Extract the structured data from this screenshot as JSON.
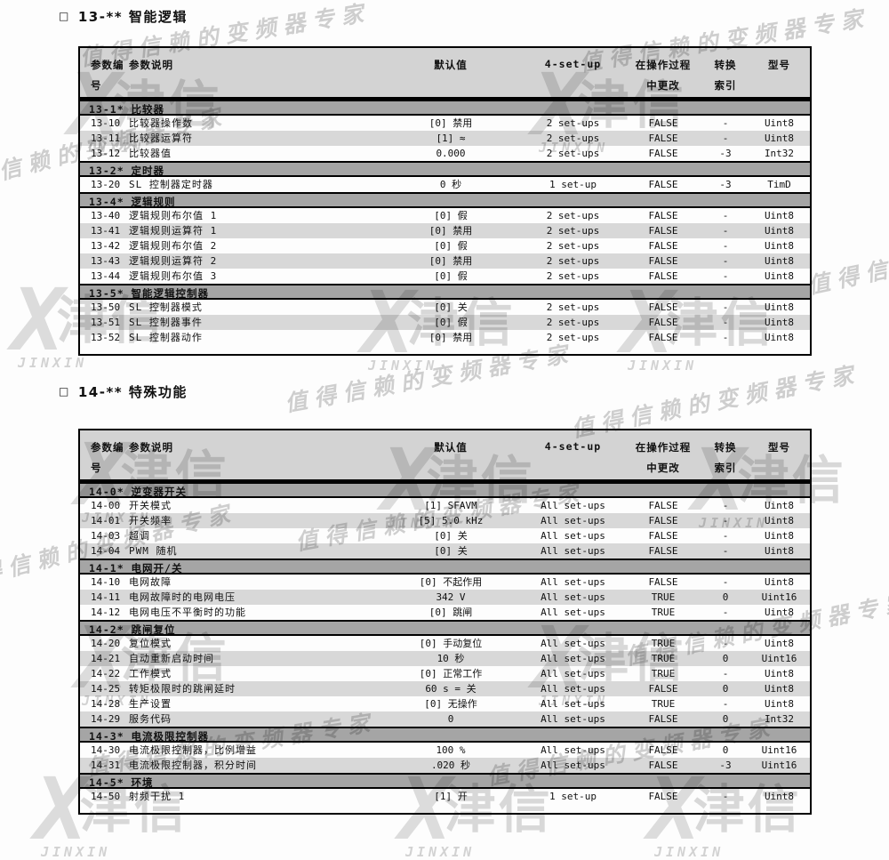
{
  "watermark": {
    "slogan": "值得信赖的变频器专家",
    "brand_x": "X",
    "brand_cn": "津信",
    "brand_en": "JINXIN"
  },
  "sections": [
    {
      "bullet": "□",
      "title": "13-** 智能逻辑",
      "header": {
        "col1_line1": "参数编",
        "col1_line2": "号",
        "col2": "参数说明",
        "col3": "默认值",
        "col4": "4-set-up",
        "col5_line1": "在操作过程",
        "col5_line2": "中更改",
        "col6_line1": "转换",
        "col6_line2": "索引",
        "col7": "型号"
      },
      "rows": [
        {
          "group": "13-1* 比较器"
        },
        {
          "no": "13-10",
          "desc": "比较器操作数",
          "default": "[0] 禁用",
          "setup": "2 set-ups",
          "change": "FALSE",
          "index": "-",
          "type": "Uint8"
        },
        {
          "no": "13-11",
          "desc": "比较器运算符",
          "default": "[1] ≈",
          "setup": "2 set-ups",
          "change": "FALSE",
          "index": "-",
          "type": "Uint8"
        },
        {
          "no": "13-12",
          "desc": "比较器值",
          "default": "0.000",
          "setup": "2 set-ups",
          "change": "FALSE",
          "index": "-3",
          "type": "Int32"
        },
        {
          "group": "13-2* 定时器"
        },
        {
          "no": "13-20",
          "desc": "SL 控制器定时器",
          "default": "0 秒",
          "setup": "1 set-up",
          "change": "FALSE",
          "index": "-3",
          "type": "TimD"
        },
        {
          "group": "13-4* 逻辑规则"
        },
        {
          "no": "13-40",
          "desc": "逻辑规则布尔值 1",
          "default": "[0] 假",
          "setup": "2 set-ups",
          "change": "FALSE",
          "index": "-",
          "type": "Uint8"
        },
        {
          "no": "13-41",
          "desc": "逻辑规则运算符 1",
          "default": "[0] 禁用",
          "setup": "2 set-ups",
          "change": "FALSE",
          "index": "-",
          "type": "Uint8"
        },
        {
          "no": "13-42",
          "desc": "逻辑规则布尔值 2",
          "default": "[0] 假",
          "setup": "2 set-ups",
          "change": "FALSE",
          "index": "-",
          "type": "Uint8"
        },
        {
          "no": "13-43",
          "desc": "逻辑规则运算符 2",
          "default": "[0] 禁用",
          "setup": "2 set-ups",
          "change": "FALSE",
          "index": "-",
          "type": "Uint8"
        },
        {
          "no": "13-44",
          "desc": "逻辑规则布尔值 3",
          "default": "[0] 假",
          "setup": "2 set-ups",
          "change": "FALSE",
          "index": "-",
          "type": "Uint8"
        },
        {
          "group": "13-5* 智能逻辑控制器"
        },
        {
          "no": "13-50",
          "desc": "SL 控制器模式",
          "default": "[0] 关",
          "setup": "2 set-ups",
          "change": "FALSE",
          "index": "-",
          "type": "Uint8"
        },
        {
          "no": "13-51",
          "desc": "SL 控制器事件",
          "default": "[0] 假",
          "setup": "2 set-ups",
          "change": "FALSE",
          "index": "-",
          "type": "Uint8"
        },
        {
          "no": "13-52",
          "desc": "SL 控制器动作",
          "default": "[0] 禁用",
          "setup": "2 set-ups",
          "change": "FALSE",
          "index": "-",
          "type": "Uint8"
        }
      ]
    },
    {
      "bullet": "□",
      "title": "14-** 特殊功能",
      "header": {
        "col1_line1": "参数编",
        "col1_line2": "号",
        "col2": "参数说明",
        "col3": "默认值",
        "col4": "4-set-up",
        "col5_line1": "在操作过程",
        "col5_line2": "中更改",
        "col6_line1": "转换",
        "col6_line2": "索引",
        "col7": "型号"
      },
      "rows": [
        {
          "group": "14-0* 逆变器开关"
        },
        {
          "no": "14-00",
          "desc": "开关模式",
          "default": "[1] SFAVM",
          "setup": "All set-ups",
          "change": "FALSE",
          "index": "-",
          "type": "Uint8"
        },
        {
          "no": "14-01",
          "desc": "开关频率",
          "default": "[5] 5.0 kHz",
          "setup": "All set-ups",
          "change": "FALSE",
          "index": "-",
          "type": "Uint8"
        },
        {
          "no": "14-03",
          "desc": "超调",
          "default": "[0] 关",
          "setup": "All set-ups",
          "change": "FALSE",
          "index": "-",
          "type": "Uint8"
        },
        {
          "no": "14-04",
          "desc": "PWM 随机",
          "default": "[0] 关",
          "setup": "All set-ups",
          "change": "FALSE",
          "index": "-",
          "type": "Uint8"
        },
        {
          "group": "14-1* 电网开/关"
        },
        {
          "no": "14-10",
          "desc": "电网故障",
          "default": "[0] 不起作用",
          "setup": "All set-ups",
          "change": "FALSE",
          "index": "-",
          "type": "Uint8"
        },
        {
          "no": "14-11",
          "desc": "电网故障时的电网电压",
          "default": "342 V",
          "setup": "All set-ups",
          "change": "TRUE",
          "index": "0",
          "type": "Uint16"
        },
        {
          "no": "14-12",
          "desc": "电网电压不平衡时的功能",
          "default": "[0] 跳闸",
          "setup": "All set-ups",
          "change": "TRUE",
          "index": "-",
          "type": "Uint8"
        },
        {
          "group": "14-2* 跳闸复位"
        },
        {
          "no": "14-20",
          "desc": "复位模式",
          "default": "[0] 手动复位",
          "setup": "All set-ups",
          "change": "TRUE",
          "index": "-",
          "type": "Uint8"
        },
        {
          "no": "14-21",
          "desc": "自动重新启动时间",
          "default": "10 秒",
          "setup": "All set-ups",
          "change": "TRUE",
          "index": "0",
          "type": "Uint16"
        },
        {
          "no": "14-22",
          "desc": "工作模式",
          "default": "[0] 正常工作",
          "setup": "All set-ups",
          "change": "TRUE",
          "index": "-",
          "type": "Uint8"
        },
        {
          "no": "14-25",
          "desc": "转矩极限时的跳闸延时",
          "default": "60 s = 关",
          "setup": "All set-ups",
          "change": "FALSE",
          "index": "0",
          "type": "Uint8"
        },
        {
          "no": "14-28",
          "desc": "生产设置",
          "default": "[0] 无操作",
          "setup": "All set-ups",
          "change": "TRUE",
          "index": "-",
          "type": "Uint8"
        },
        {
          "no": "14-29",
          "desc": "服务代码",
          "default": "0",
          "setup": "All set-ups",
          "change": "FALSE",
          "index": "0",
          "type": "Int32"
        },
        {
          "group": "14-3* 电流极限控制器"
        },
        {
          "no": "14-30",
          "desc": "电流极限控制器，比例增益",
          "default": "100 %",
          "setup": "All set-ups",
          "change": "FALSE",
          "index": "0",
          "type": "Uint16"
        },
        {
          "no": "14-31",
          "desc": "电流极限控制器，积分时间",
          "default": ".020 秒",
          "setup": "All set-ups",
          "change": "FALSE",
          "index": "-3",
          "type": "Uint16"
        },
        {
          "group": "14-5* 环境"
        },
        {
          "no": "14-50",
          "desc": "射频干扰 1",
          "default": "[1] 开",
          "setup": "1 set-up",
          "change": "FALSE",
          "index": "-",
          "type": "Uint8"
        }
      ]
    }
  ]
}
